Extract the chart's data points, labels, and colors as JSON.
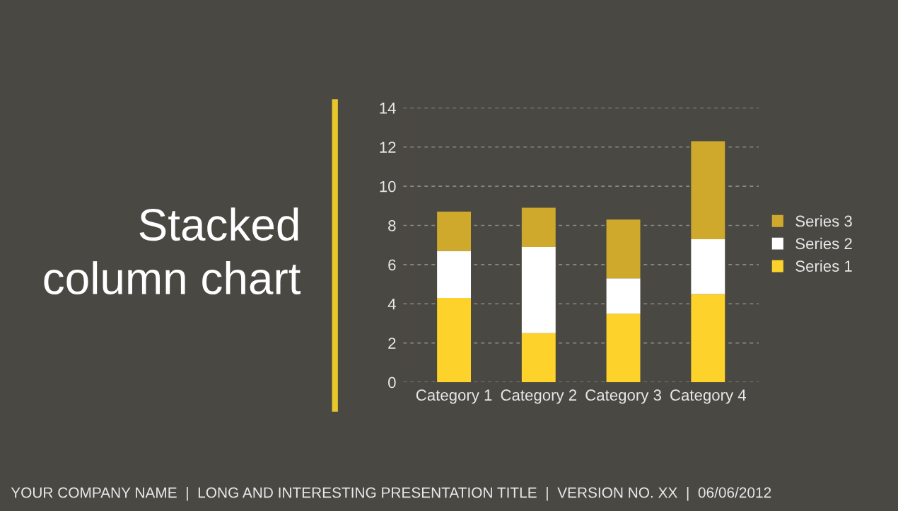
{
  "chart_data": {
    "type": "bar",
    "stacked": true,
    "title": "Stacked column chart",
    "categories": [
      "Category 1",
      "Category 2",
      "Category 3",
      "Category 4"
    ],
    "series": [
      {
        "name": "Series 1",
        "color": "#fdd22b",
        "values": [
          4.3,
          2.5,
          3.5,
          4.5
        ]
      },
      {
        "name": "Series 2",
        "color": "#ffffff",
        "values": [
          2.4,
          4.4,
          1.8,
          2.8
        ]
      },
      {
        "name": "Series 3",
        "color": "#cfa92c",
        "values": [
          2,
          2,
          3,
          5
        ]
      }
    ],
    "ylim": [
      0,
      14
    ],
    "yticks": [
      0,
      2,
      4,
      6,
      8,
      10,
      12,
      14
    ],
    "grid": "y",
    "legend": "right",
    "annotations": [
      "YOUR COMPANY NAME  |  LONG AND INTERESTING PRESENTATION TITLE  |  VERSION NO. XX  |  06/06/2012"
    ]
  }
}
